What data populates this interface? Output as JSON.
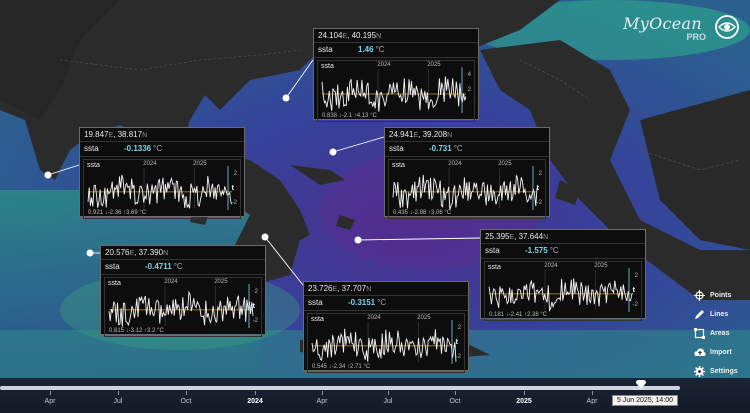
{
  "app": {
    "logo_text": "MyOcean",
    "logo_sub": "PRO"
  },
  "popups": [
    {
      "id": "p1",
      "coord_lon": "24.104",
      "coord_lat": "40.195",
      "label": "ssta",
      "value": "1.46",
      "unit": "°C",
      "years": [
        "2024",
        "2025"
      ],
      "yticks": [
        "4",
        "2"
      ],
      "min": "0.838",
      "low": "-2.1",
      "high": "4.13",
      "stat_unit": "°C"
    },
    {
      "id": "p2",
      "coord_lon": "19.847",
      "coord_lat": "38.817",
      "label": "ssta",
      "value": "-0.1336",
      "unit": "°C",
      "years": [
        "2024",
        "2025"
      ],
      "yticks": [
        "2",
        "t",
        "-2"
      ],
      "min": "0.921",
      "low": "-2.36",
      "high": "3.69",
      "stat_unit": "°C"
    },
    {
      "id": "p3",
      "coord_lon": "24.941",
      "coord_lat": "39.208",
      "label": "ssta",
      "value": "-0.731",
      "unit": "°C",
      "years": [
        "2024",
        "2025"
      ],
      "yticks": [
        "2",
        "t",
        "-2"
      ],
      "min": "0.435",
      "low": "-2.88",
      "high": "3.06",
      "stat_unit": "°C"
    },
    {
      "id": "p4",
      "coord_lon": "20.576",
      "coord_lat": "37.390",
      "label": "ssta",
      "value": "-0.4711",
      "unit": "°C",
      "years": [
        "2024",
        "2025"
      ],
      "yticks": [
        "2",
        "t",
        "-2"
      ],
      "min": "0.815",
      "low": "-3.12",
      "high": "3.2",
      "stat_unit": "°C"
    },
    {
      "id": "p5",
      "coord_lon": "23.726",
      "coord_lat": "37.707",
      "label": "ssta",
      "value": "-0.3151",
      "unit": "°C",
      "years": [
        "2024",
        "2025"
      ],
      "yticks": [
        "2",
        "t",
        "-2"
      ],
      "min": "0.545",
      "low": "-2.34",
      "high": "2.71",
      "stat_unit": "°C"
    },
    {
      "id": "p6",
      "coord_lon": "25.395",
      "coord_lat": "37.644",
      "label": "ssta",
      "value": "-1.575",
      "unit": "°C",
      "years": [
        "2024",
        "2025"
      ],
      "yticks": [
        "2",
        "t",
        "-2"
      ],
      "min": "0.181",
      "low": "-2.41",
      "high": "2.38",
      "stat_unit": "°C"
    }
  ],
  "coord_dirs": {
    "east": "E",
    "north": "N"
  },
  "menu": [
    {
      "label": "Points",
      "icon": "crosshair-icon"
    },
    {
      "label": "Lines",
      "icon": "pencil-icon"
    },
    {
      "label": "Areas",
      "icon": "area-icon"
    },
    {
      "label": "Import",
      "icon": "cloud-upload-icon"
    },
    {
      "label": "Settings",
      "icon": "gear-icon"
    }
  ],
  "timeline": {
    "ticks": [
      "Apr",
      "Jul",
      "Oct",
      "2024",
      "Apr",
      "Jul",
      "Oct",
      "2025",
      "Apr"
    ],
    "major": [
      "2024",
      "2025"
    ],
    "current": "5 Jun 2025, 14:00"
  },
  "colors": {
    "land": "#2b2b2b",
    "sea_low": "#2a3b8e",
    "sea_mid": "#2a8a8c",
    "sea_high": "#2fc08b",
    "accent": "#7fd3ea"
  }
}
